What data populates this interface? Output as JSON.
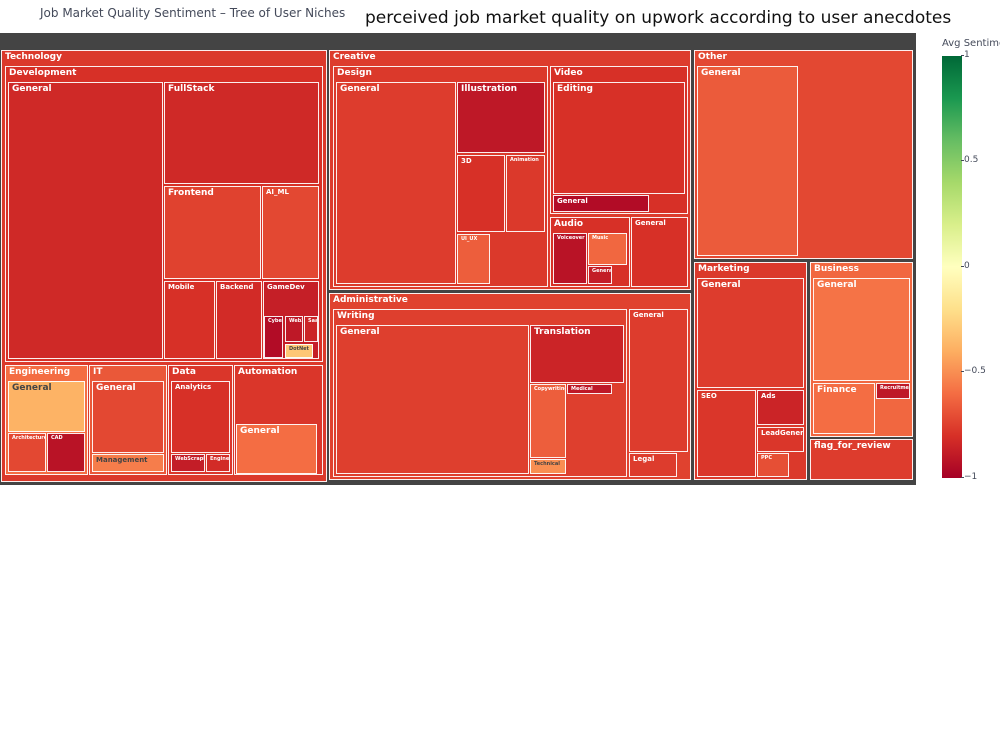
{
  "title": "Job Market Quality Sentiment – Tree of User Niches",
  "annotation": "perceived job market quality on upwork according to user anecdotes",
  "colorbar": {
    "title": "Avg Sentime",
    "ticks": [
      "1",
      "0.5",
      "0",
      "−0.5",
      "−1"
    ],
    "tick_values": [
      1,
      0.5,
      0,
      -0.5,
      -1
    ],
    "range": [
      -1,
      1
    ],
    "colors": [
      "#006837",
      "#1a9850",
      "#66bd63",
      "#a6d96a",
      "#d9ef8b",
      "#ffffbf",
      "#fee08b",
      "#fdae61",
      "#f46d43",
      "#d73027",
      "#a50026"
    ]
  },
  "chart_data": {
    "type": "treemap",
    "color_metric": "Avg Sentime",
    "nodes": [
      {
        "id": "Technology",
        "label": "Technology",
        "parent": "",
        "sentiment": -0.77
      },
      {
        "id": "Technology/Development",
        "label": "Development",
        "parent": "Technology",
        "sentiment": -0.8
      },
      {
        "id": "Technology/Development/General",
        "label": "General",
        "parent": "Technology/Development",
        "sentiment": -0.83
      },
      {
        "id": "Technology/Development/FullStack",
        "label": "FullStack",
        "parent": "Technology/Development",
        "sentiment": -0.83
      },
      {
        "id": "Technology/Development/Frontend",
        "label": "Frontend",
        "parent": "Technology/Development",
        "sentiment": -0.74
      },
      {
        "id": "Technology/Development/AI_ML",
        "label": "AI_ML",
        "parent": "Technology/Development",
        "sentiment": -0.72
      },
      {
        "id": "Technology/Development/Mobile",
        "label": "Mobile",
        "parent": "Technology/Development",
        "sentiment": -0.8
      },
      {
        "id": "Technology/Development/Backend",
        "label": "Backend",
        "parent": "Technology/Development",
        "sentiment": -0.82
      },
      {
        "id": "Technology/Development/GameDev",
        "label": "GameDev",
        "parent": "Technology/Development",
        "sentiment": -0.87
      },
      {
        "id": "Technology/Development/GameDev/Cybersecurity",
        "label": "Cybersecurity",
        "parent": "Technology/Development/GameDev",
        "sentiment": -0.95
      },
      {
        "id": "Technology/Development/GameDev/Web3",
        "label": "Web3",
        "parent": "Technology/Development/GameDev",
        "sentiment": -0.9
      },
      {
        "id": "Technology/Development/GameDev/SaaS",
        "label": "SaaS",
        "parent": "Technology/Development/GameDev",
        "sentiment": -0.85
      },
      {
        "id": "Technology/Development/GameDev/DotNet",
        "label": "DotNet",
        "parent": "Technology/Development/GameDev",
        "sentiment": -0.3
      },
      {
        "id": "Technology/Engineering",
        "label": "Engineering",
        "parent": "Technology",
        "sentiment": -0.6
      },
      {
        "id": "Technology/Engineering/General",
        "label": "General",
        "parent": "Technology/Engineering",
        "sentiment": -0.38
      },
      {
        "id": "Technology/Engineering/Architecture",
        "label": "Architecture",
        "parent": "Technology/Engineering",
        "sentiment": -0.72
      },
      {
        "id": "Technology/Engineering/CAD",
        "label": "CAD",
        "parent": "Technology/Engineering",
        "sentiment": -0.92
      },
      {
        "id": "Technology/IT",
        "label": "IT",
        "parent": "Technology",
        "sentiment": -0.67
      },
      {
        "id": "Technology/IT/General",
        "label": "General",
        "parent": "Technology/IT",
        "sentiment": -0.72
      },
      {
        "id": "Technology/IT/Management",
        "label": "Management",
        "parent": "Technology/IT",
        "sentiment": -0.55
      },
      {
        "id": "Technology/Data",
        "label": "Data",
        "parent": "Technology",
        "sentiment": -0.78
      },
      {
        "id": "Technology/Data/Analytics",
        "label": "Analytics",
        "parent": "Technology/Data",
        "sentiment": -0.8
      },
      {
        "id": "Technology/Data/WebScraping",
        "label": "WebScraping",
        "parent": "Technology/Data",
        "sentiment": -0.88
      },
      {
        "id": "Technology/Data/Engineering",
        "label": "Engineering",
        "parent": "Technology/Data",
        "sentiment": -0.82
      },
      {
        "id": "Technology/Automation",
        "label": "Automation",
        "parent": "Technology",
        "sentiment": -0.78
      },
      {
        "id": "Technology/Automation/General",
        "label": "General",
        "parent": "Technology/Automation",
        "sentiment": -0.6
      },
      {
        "id": "Creative",
        "label": "Creative",
        "parent": "",
        "sentiment": -0.76
      },
      {
        "id": "Creative/Design",
        "label": "Design",
        "parent": "Creative",
        "sentiment": -0.77
      },
      {
        "id": "Creative/Design/General",
        "label": "General",
        "parent": "Creative/Design",
        "sentiment": -0.76
      },
      {
        "id": "Creative/Design/Illustration",
        "label": "Illustration",
        "parent": "Creative/Design",
        "sentiment": -0.9
      },
      {
        "id": "Creative/Design/3D",
        "label": "3D",
        "parent": "Creative/Design",
        "sentiment": -0.8
      },
      {
        "id": "Creative/Design/Animation",
        "label": "Animation",
        "parent": "Creative/Design",
        "sentiment": -0.77
      },
      {
        "id": "Creative/Design/UI_UX",
        "label": "UI_UX",
        "parent": "Creative/Design",
        "sentiment": -0.65
      },
      {
        "id": "Creative/Video",
        "label": "Video",
        "parent": "Creative",
        "sentiment": -0.8
      },
      {
        "id": "Creative/Video/Editing",
        "label": "Editing",
        "parent": "Creative/Video",
        "sentiment": -0.8
      },
      {
        "id": "Creative/Video/General",
        "label": "General",
        "parent": "Creative/Video",
        "sentiment": -0.95
      },
      {
        "id": "Creative/Audio",
        "label": "Audio",
        "parent": "Creative",
        "sentiment": -0.8
      },
      {
        "id": "Creative/Audio/Voiceover",
        "label": "Voiceover",
        "parent": "Creative/Audio",
        "sentiment": -0.92
      },
      {
        "id": "Creative/Audio/Music",
        "label": "Music",
        "parent": "Creative/Audio",
        "sentiment": -0.62
      },
      {
        "id": "Creative/Audio/General",
        "label": "General",
        "parent": "Creative/Audio",
        "sentiment": -0.88
      },
      {
        "id": "Creative/General",
        "label": "General",
        "parent": "Creative",
        "sentiment": -0.8
      },
      {
        "id": "Administrative",
        "label": "Administrative",
        "parent": "",
        "sentiment": -0.74
      },
      {
        "id": "Administrative/Writing",
        "label": "Writing",
        "parent": "Administrative",
        "sentiment": -0.75
      },
      {
        "id": "Administrative/Writing/General",
        "label": "General",
        "parent": "Administrative/Writing",
        "sentiment": -0.75
      },
      {
        "id": "Administrative/Writing/Translation",
        "label": "Translation",
        "parent": "Administrative/Writing",
        "sentiment": -0.85
      },
      {
        "id": "Administrative/Writing/Copywriting",
        "label": "Copywriting",
        "parent": "Administrative/Writing",
        "sentiment": -0.65
      },
      {
        "id": "Administrative/Writing/Medical",
        "label": "Medical",
        "parent": "Administrative/Writing",
        "sentiment": -0.9
      },
      {
        "id": "Administrative/Writing/Technical",
        "label": "Technical",
        "parent": "Administrative/Writing",
        "sentiment": -0.5
      },
      {
        "id": "Administrative/General",
        "label": "General",
        "parent": "Administrative",
        "sentiment": -0.76
      },
      {
        "id": "Administrative/Legal",
        "label": "Legal",
        "parent": "Administrative",
        "sentiment": -0.76
      },
      {
        "id": "Other",
        "label": "Other",
        "parent": "",
        "sentiment": -0.72
      },
      {
        "id": "Other/General",
        "label": "General",
        "parent": "Other",
        "sentiment": -0.66
      },
      {
        "id": "Marketing",
        "label": "Marketing",
        "parent": "",
        "sentiment": -0.77
      },
      {
        "id": "Marketing/General",
        "label": "General",
        "parent": "Marketing",
        "sentiment": -0.76
      },
      {
        "id": "Marketing/SEO",
        "label": "SEO",
        "parent": "Marketing",
        "sentiment": -0.78
      },
      {
        "id": "Marketing/Ads",
        "label": "Ads",
        "parent": "Marketing",
        "sentiment": -0.85
      },
      {
        "id": "Marketing/LeadGeneration",
        "label": "LeadGeneration",
        "parent": "Marketing",
        "sentiment": -0.78
      },
      {
        "id": "Marketing/PPC",
        "label": "PPC",
        "parent": "Marketing",
        "sentiment": -0.7
      },
      {
        "id": "Business",
        "label": "Business",
        "parent": "",
        "sentiment": -0.62
      },
      {
        "id": "Business/General",
        "label": "General",
        "parent": "Business",
        "sentiment": -0.58
      },
      {
        "id": "Business/Finance",
        "label": "Finance",
        "parent": "Business",
        "sentiment": -0.6
      },
      {
        "id": "Business/Recruitment",
        "label": "Recruitment",
        "parent": "Business",
        "sentiment": -0.9
      },
      {
        "id": "flag_for_review",
        "label": "flag_for_review",
        "parent": "",
        "sentiment": -0.76
      }
    ]
  }
}
